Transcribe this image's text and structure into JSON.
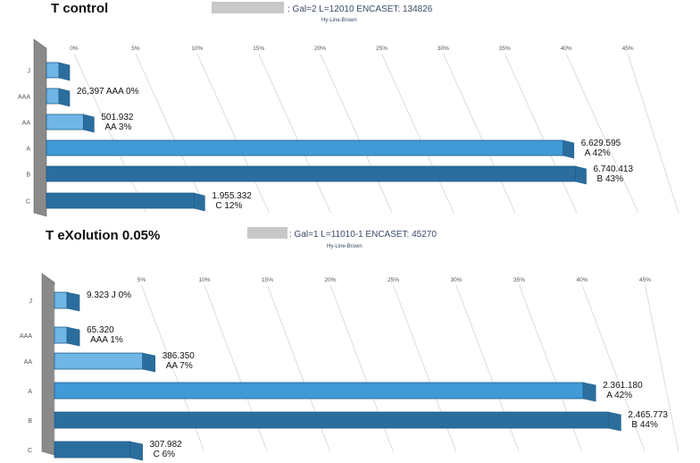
{
  "colors": {
    "bar_front": "#3f9ad6",
    "bar_light": "#6fb6e6",
    "bar_dark": "#2b6e9e",
    "bar_edge": "#1f5c88",
    "wall": "#8a8a8a",
    "grid": "#cfcfcf",
    "redacted": "#c8c8c8"
  },
  "panels": [
    {
      "title": "T control",
      "meta": ": Gal=2  L=12010 ENCASET: 134826",
      "meta_sub": "Hy-Line-Brown"
    },
    {
      "title": "T eXolution 0.05%",
      "meta": ": Gal=1  L=11010-1 ENCASET: 45270",
      "meta_sub": "Hy-Line-Brown"
    }
  ],
  "chart_data": [
    {
      "type": "bar",
      "orientation": "horizontal",
      "style": "3d",
      "categories": [
        "J",
        "AAA",
        "AA",
        "A",
        "B",
        "C"
      ],
      "series": [
        {
          "values_percent": [
            0,
            0,
            3,
            42,
            43,
            12
          ],
          "counts": [
            "",
            "26,397",
            "501.932",
            "6.629.595",
            "6.740.413",
            "1.955.332"
          ],
          "data_labels": [
            [
              "",
              ""
            ],
            [
              "26,397  AAA 0%",
              ""
            ],
            [
              "501.932",
              "AA  3%"
            ],
            [
              "6.629.595",
              "A   42%"
            ],
            [
              "6.740.413",
              "B   43%"
            ],
            [
              "1.955.332",
              "C    12%"
            ]
          ]
        }
      ],
      "x_ticks": [
        "0%",
        "5%",
        "10%",
        "15%",
        "20%",
        "25%",
        "30%",
        "35%",
        "40%",
        "45%"
      ],
      "xlim": [
        0,
        45
      ],
      "grid": true
    },
    {
      "type": "bar",
      "orientation": "horizontal",
      "style": "3d",
      "categories": [
        "J",
        "AAA",
        "AA",
        "A",
        "B",
        "C"
      ],
      "series": [
        {
          "values_percent": [
            0,
            1,
            7,
            42,
            44,
            6
          ],
          "counts": [
            "9.323",
            "65.320",
            "386.350",
            "2.361.180",
            "2.465.773",
            "307.982"
          ],
          "data_labels": [
            [
              "9.323  J  0%",
              ""
            ],
            [
              "65.320",
              "AAA  1%"
            ],
            [
              "386.350",
              "AA  7%"
            ],
            [
              "2.361.180",
              "A   42%"
            ],
            [
              "2.465.773",
              "B   44%"
            ],
            [
              "307.982",
              "C    6%"
            ]
          ]
        }
      ],
      "x_ticks": [
        "",
        "5%",
        "10%",
        "15%",
        "20%",
        "25%",
        "30%",
        "35%",
        "40%",
        "45%"
      ],
      "xlim": [
        0,
        45
      ],
      "grid": true
    }
  ]
}
